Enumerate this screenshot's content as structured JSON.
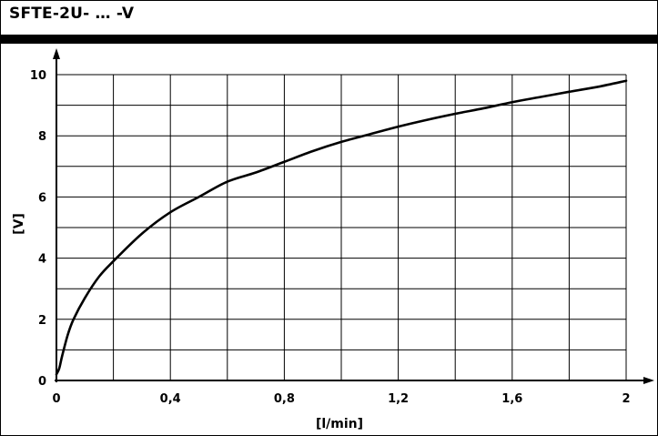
{
  "header": {
    "title": "SFTE-2U- … -V"
  },
  "chart_data": {
    "type": "line",
    "title": "",
    "xlabel": "[l/min]",
    "ylabel": "[V]",
    "xlim": [
      0,
      2
    ],
    "ylim": [
      0,
      10
    ],
    "xticks": [
      {
        "value": 0,
        "label": "0"
      },
      {
        "value": 0.4,
        "label": "0,4"
      },
      {
        "value": 0.8,
        "label": "0,8"
      },
      {
        "value": 1.2,
        "label": "1,2"
      },
      {
        "value": 1.6,
        "label": "1,6"
      },
      {
        "value": 2,
        "label": "2"
      }
    ],
    "yticks": [
      {
        "value": 0,
        "label": "0"
      },
      {
        "value": 2,
        "label": "2"
      },
      {
        "value": 4,
        "label": "4"
      },
      {
        "value": 6,
        "label": "6"
      },
      {
        "value": 8,
        "label": "8"
      },
      {
        "value": 10,
        "label": "10"
      }
    ],
    "grid": {
      "x_step": 0.2,
      "y_step": 1,
      "on": true
    },
    "series": [
      {
        "color": "#000000",
        "x": [
          0,
          0.01,
          0.02,
          0.04,
          0.06,
          0.1,
          0.15,
          0.2,
          0.3,
          0.4,
          0.5,
          0.6,
          0.7,
          0.8,
          0.9,
          1.0,
          1.1,
          1.2,
          1.3,
          1.4,
          1.5,
          1.6,
          1.7,
          1.8,
          1.9,
          2.0
        ],
        "y": [
          0.2,
          0.4,
          0.8,
          1.5,
          2.0,
          2.7,
          3.4,
          3.9,
          4.8,
          5.5,
          6.0,
          6.5,
          6.8,
          7.15,
          7.5,
          7.8,
          8.05,
          8.3,
          8.52,
          8.72,
          8.9,
          9.1,
          9.27,
          9.44,
          9.6,
          9.8
        ]
      }
    ]
  }
}
